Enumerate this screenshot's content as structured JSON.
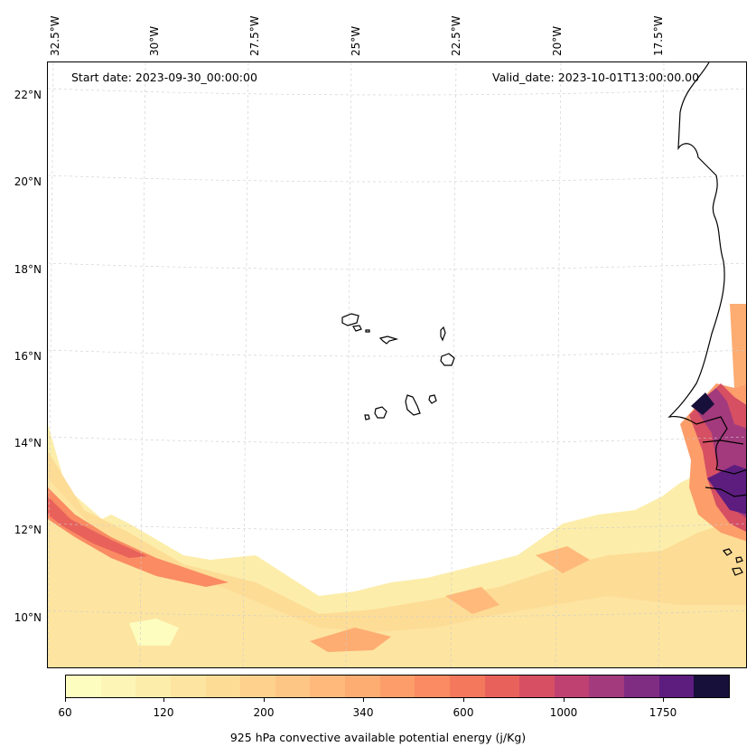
{
  "map": {
    "start_date": "Start date: 2023-09-30_00:00:00",
    "valid_date": "Valid_date: 2023-10-01T13:00:00.00",
    "lon_labels": [
      "32.5°W",
      "30°W",
      "27.5°W",
      "25°W",
      "22.5°W",
      "20°W",
      "17.5°W"
    ],
    "lat_labels": [
      "22°N",
      "20°N",
      "18°N",
      "16°N",
      "14°N",
      "12°N",
      "10°N"
    ],
    "gridlines": true,
    "coastline_color": "#000000"
  },
  "colorbar": {
    "title": "925 hPa convective available potential energy (j/Kg)",
    "tick_labels": [
      "60",
      "120",
      "200",
      "340",
      "600",
      "1000",
      "1750"
    ],
    "colors": [
      "#fcfdbf",
      "#fcf5b6",
      "#fcedaa",
      "#fde4a0",
      "#fddc96",
      "#fed18c",
      "#fec684",
      "#feb97b",
      "#fdac72",
      "#fc9d6a",
      "#fa8b62",
      "#f4785c",
      "#e8625b",
      "#d64f63",
      "#bf4171",
      "#a33a7d",
      "#7f2d83",
      "#5d1d7f",
      "#17103a"
    ]
  },
  "chart_data": {
    "type": "heatmap",
    "title": "",
    "variable": "925 hPa convective available potential energy (j/Kg)",
    "x_axis": "longitude",
    "y_axis": "latitude",
    "xlim": [
      -33,
      -15
    ],
    "ylim": [
      9,
      22.5
    ],
    "color_levels": [
      60,
      120,
      200,
      340,
      600,
      1000,
      1750
    ],
    "regions": [
      {
        "area": "southwest band (32.5°W–24°W, 9°N–12.5°N)",
        "value_range": [
          120,
          600
        ]
      },
      {
        "area": "southern band (24°W–15.5°W, 9°N–11.5°N)",
        "value_range": [
          60,
          340
        ]
      },
      {
        "area": "Senegal/Gambia/Guinea-Bissau coast (16.5°W–15.5°W, 11°N–15°N)",
        "value_range": [
          600,
          1750
        ]
      }
    ]
  }
}
